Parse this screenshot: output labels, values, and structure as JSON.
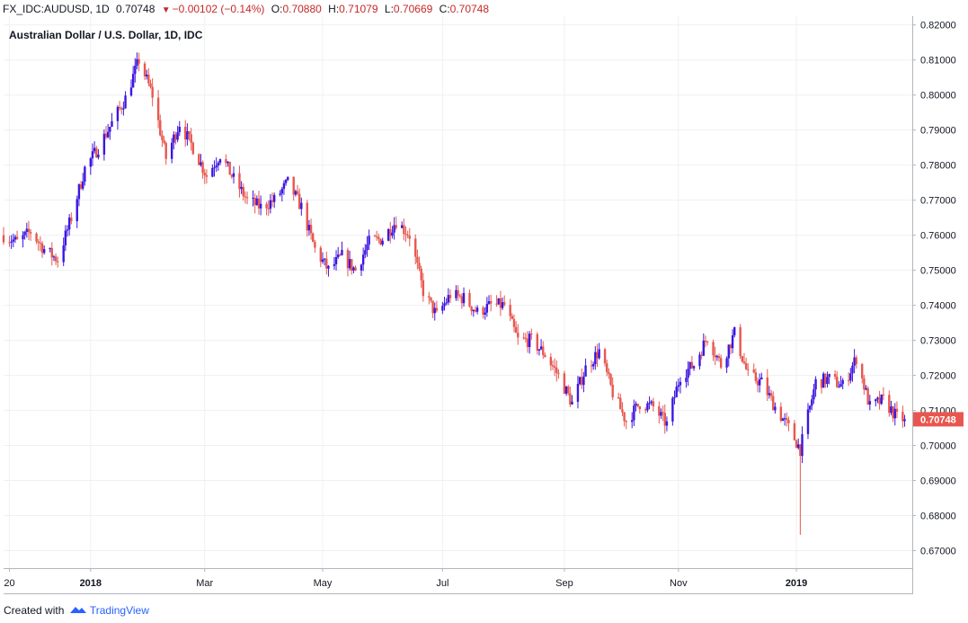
{
  "header": {
    "symbol": "FX_IDC:AUDUSD, 1D",
    "last": "0.70748",
    "change": "−0.00102 (−0.14%)",
    "o_label": "O:",
    "o_value": "0.70880",
    "h_label": "H:",
    "h_value": "0.71079",
    "l_label": "L:",
    "l_value": "0.70669",
    "c_label": "C:",
    "c_value": "0.70748",
    "down_color": "#c62828"
  },
  "footer": {
    "created_with": "Created with",
    "brand": "TradingView",
    "brand_icon": "tradingview-logo-icon"
  },
  "chart_data": {
    "type": "candlestick",
    "title": "Australian Dollar / U.S. Dollar, 1D, IDC",
    "ylim": [
      0.665,
      0.8225
    ],
    "yticks": [
      "0.82000",
      "0.81000",
      "0.80000",
      "0.79000",
      "0.78000",
      "0.77000",
      "0.76000",
      "0.75000",
      "0.74000",
      "0.73000",
      "0.72000",
      "0.71000",
      "0.70000",
      "0.69000",
      "0.68000",
      "0.67000"
    ],
    "xticks": [
      {
        "label": "20",
        "date": "2017-11-20"
      },
      {
        "label": "2018",
        "date": "2018-01-01",
        "bold": true
      },
      {
        "label": "Mar",
        "date": "2018-03-01"
      },
      {
        "label": "May",
        "date": "2018-05-01"
      },
      {
        "label": "Jul",
        "date": "2018-07-02"
      },
      {
        "label": "Sep",
        "date": "2018-09-03"
      },
      {
        "label": "Nov",
        "date": "2018-11-01"
      },
      {
        "label": "2019",
        "date": "2019-01-01",
        "bold": true
      }
    ],
    "x_start": "2017-11-17",
    "x_end": "2019-03-01",
    "last_price_label": "0.70748",
    "up_color": "#3c16e0",
    "down_color": "#e8574f",
    "grid": true,
    "close_path": [
      [
        "2017-11-17",
        0.76
      ],
      [
        "2017-11-24",
        0.758
      ],
      [
        "2017-12-01",
        0.761
      ],
      [
        "2017-12-08",
        0.756
      ],
      [
        "2017-12-15",
        0.753
      ],
      [
        "2017-12-22",
        0.765
      ],
      [
        "2017-12-29",
        0.779
      ],
      [
        "2018-01-05",
        0.785
      ],
      [
        "2018-01-12",
        0.792
      ],
      [
        "2018-01-19",
        0.799
      ],
      [
        "2018-01-26",
        0.81
      ],
      [
        "2018-02-02",
        0.8
      ],
      [
        "2018-02-09",
        0.782
      ],
      [
        "2018-02-16",
        0.792
      ],
      [
        "2018-02-23",
        0.785
      ],
      [
        "2018-03-02",
        0.777
      ],
      [
        "2018-03-09",
        0.783
      ],
      [
        "2018-03-16",
        0.776
      ],
      [
        "2018-03-23",
        0.77
      ],
      [
        "2018-03-30",
        0.768
      ],
      [
        "2018-04-06",
        0.77
      ],
      [
        "2018-04-13",
        0.775
      ],
      [
        "2018-04-20",
        0.768
      ],
      [
        "2018-04-27",
        0.756
      ],
      [
        "2018-05-04",
        0.75
      ],
      [
        "2018-05-11",
        0.754
      ],
      [
        "2018-05-18",
        0.75
      ],
      [
        "2018-05-25",
        0.758
      ],
      [
        "2018-06-01",
        0.759
      ],
      [
        "2018-06-08",
        0.764
      ],
      [
        "2018-06-15",
        0.76
      ],
      [
        "2018-06-22",
        0.744
      ],
      [
        "2018-06-29",
        0.737
      ],
      [
        "2018-07-06",
        0.743
      ],
      [
        "2018-07-13",
        0.742
      ],
      [
        "2018-07-20",
        0.738
      ],
      [
        "2018-07-27",
        0.74
      ],
      [
        "2018-08-03",
        0.74
      ],
      [
        "2018-08-10",
        0.73
      ],
      [
        "2018-08-17",
        0.73
      ],
      [
        "2018-08-24",
        0.726
      ],
      [
        "2018-08-31",
        0.72
      ],
      [
        "2018-09-07",
        0.712
      ],
      [
        "2018-09-14",
        0.722
      ],
      [
        "2018-09-21",
        0.727
      ],
      [
        "2018-09-28",
        0.715
      ],
      [
        "2018-10-05",
        0.707
      ],
      [
        "2018-10-12",
        0.712
      ],
      [
        "2018-10-19",
        0.711
      ],
      [
        "2018-10-26",
        0.706
      ],
      [
        "2018-11-02",
        0.72
      ],
      [
        "2018-11-09",
        0.723
      ],
      [
        "2018-11-16",
        0.731
      ],
      [
        "2018-11-23",
        0.723
      ],
      [
        "2018-11-30",
        0.732
      ],
      [
        "2018-12-07",
        0.72
      ],
      [
        "2018-12-14",
        0.718
      ],
      [
        "2018-12-21",
        0.711
      ],
      [
        "2018-12-28",
        0.705
      ],
      [
        "2019-01-03",
        0.699
      ],
      [
        "2019-01-11",
        0.718
      ],
      [
        "2019-01-18",
        0.719
      ],
      [
        "2019-01-25",
        0.717
      ],
      [
        "2019-02-01",
        0.725
      ],
      [
        "2019-02-08",
        0.711
      ],
      [
        "2019-02-15",
        0.713
      ],
      [
        "2019-02-22",
        0.708
      ],
      [
        "2019-02-26",
        0.7075
      ]
    ],
    "spike_low": {
      "date": "2019-01-03",
      "value": 0.6745
    },
    "seed": 7
  }
}
